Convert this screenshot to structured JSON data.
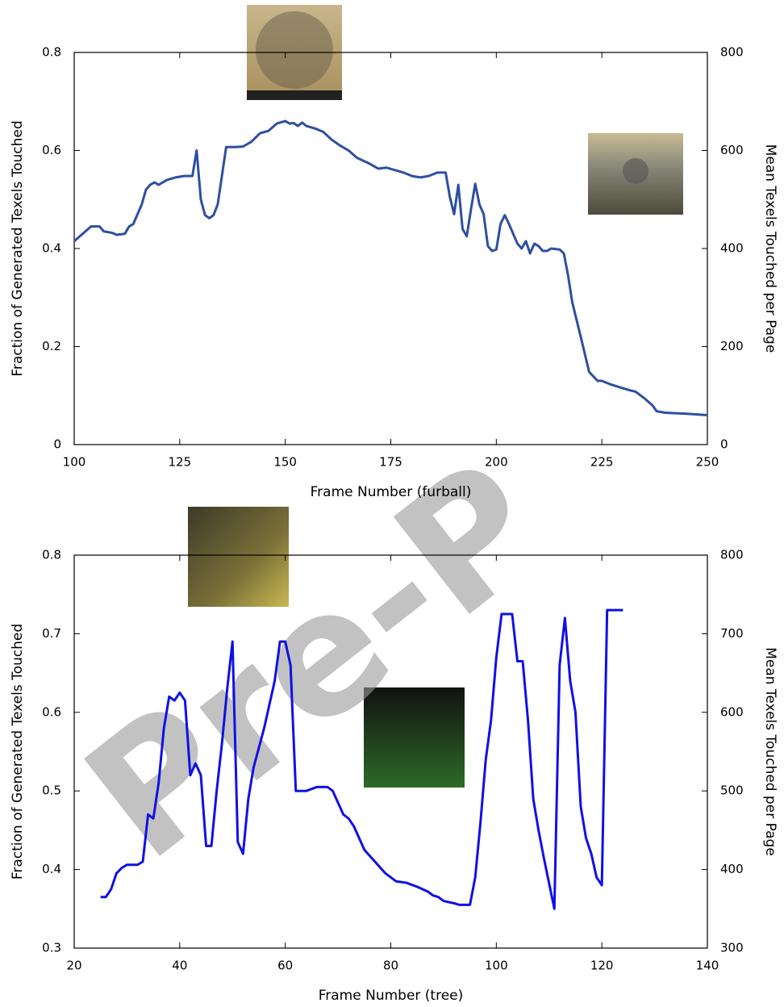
{
  "watermark": "Pre-P",
  "chart_data": [
    {
      "type": "line",
      "xlabel": "Frame Number (furball)",
      "ylabel": "Fraction of Generated Texels Touched",
      "y2label": "Mean Texels Touched per Page",
      "color": "#2e4fa0",
      "x": [
        100,
        102,
        104,
        106,
        107,
        109,
        110,
        112,
        113,
        114,
        116,
        117,
        118,
        119,
        120,
        122,
        124,
        126,
        128,
        129,
        130,
        131,
        132,
        133,
        134,
        136,
        138,
        140,
        142,
        144,
        146,
        148,
        150,
        151,
        152,
        153,
        154,
        155,
        157,
        159,
        161,
        163,
        165,
        167,
        170,
        172,
        174,
        176,
        178,
        180,
        182,
        184,
        186,
        188,
        189,
        190,
        191,
        192,
        193,
        194,
        195,
        196,
        197,
        198,
        199,
        200,
        201,
        202,
        203,
        205,
        206,
        207,
        208,
        209,
        210,
        211,
        212,
        213,
        215,
        216,
        217,
        218,
        220,
        222,
        224,
        225,
        227,
        230,
        232,
        233,
        235,
        237,
        238,
        240,
        245,
        250
      ],
      "values": [
        0.415,
        0.43,
        0.445,
        0.445,
        0.435,
        0.432,
        0.428,
        0.43,
        0.445,
        0.45,
        0.49,
        0.52,
        0.53,
        0.535,
        0.53,
        0.54,
        0.545,
        0.548,
        0.548,
        0.6,
        0.5,
        0.468,
        0.462,
        0.468,
        0.49,
        0.607,
        0.607,
        0.608,
        0.618,
        0.635,
        0.64,
        0.655,
        0.66,
        0.655,
        0.656,
        0.65,
        0.657,
        0.65,
        0.645,
        0.638,
        0.622,
        0.61,
        0.6,
        0.585,
        0.573,
        0.563,
        0.565,
        0.56,
        0.555,
        0.548,
        0.545,
        0.548,
        0.555,
        0.555,
        0.505,
        0.47,
        0.53,
        0.44,
        0.425,
        0.48,
        0.532,
        0.49,
        0.47,
        0.405,
        0.395,
        0.398,
        0.45,
        0.468,
        0.45,
        0.41,
        0.4,
        0.415,
        0.39,
        0.41,
        0.405,
        0.395,
        0.395,
        0.4,
        0.398,
        0.39,
        0.345,
        0.29,
        0.22,
        0.148,
        0.13,
        0.13,
        0.123,
        0.115,
        0.11,
        0.108,
        0.095,
        0.08,
        0.068,
        0.065,
        0.063,
        0.06
      ],
      "xlim": [
        100,
        250
      ],
      "xticks": [
        100,
        125,
        150,
        175,
        200,
        225,
        250
      ],
      "ylim": [
        0,
        0.8
      ],
      "yticks": [
        0,
        0.2,
        0.4,
        0.6,
        0.8
      ],
      "y2lim": [
        0,
        800
      ],
      "y2ticks": [
        0,
        200,
        400,
        600,
        800
      ]
    },
    {
      "type": "line",
      "xlabel": "Frame Number (tree)",
      "ylabel": "Fraction of Generated Texels Touched",
      "y2label": "Mean Texels Touched per Page",
      "color": "#1010e6",
      "x": [
        25,
        26,
        27,
        28,
        29,
        30,
        32,
        33,
        34,
        35,
        36,
        37,
        38,
        39,
        40,
        41,
        42,
        43,
        44,
        45,
        46,
        47,
        48,
        49,
        50,
        51,
        52,
        53,
        54,
        56,
        58,
        59,
        60,
        61,
        62,
        64,
        66,
        68,
        69,
        70,
        71,
        72,
        73,
        75,
        77,
        79,
        81,
        83,
        85,
        87,
        88,
        89,
        90,
        92,
        93,
        95,
        96,
        97,
        98,
        99,
        100,
        101,
        103,
        104,
        105,
        106,
        107,
        108,
        109,
        111,
        112,
        113,
        114,
        115,
        116,
        117,
        118,
        119,
        120,
        121,
        124
      ],
      "values": [
        0.365,
        0.365,
        0.375,
        0.395,
        0.402,
        0.406,
        0.406,
        0.41,
        0.47,
        0.465,
        0.51,
        0.58,
        0.62,
        0.615,
        0.625,
        0.615,
        0.52,
        0.535,
        0.52,
        0.43,
        0.43,
        0.5,
        0.56,
        0.63,
        0.69,
        0.435,
        0.42,
        0.49,
        0.53,
        0.58,
        0.64,
        0.69,
        0.69,
        0.66,
        0.5,
        0.5,
        0.505,
        0.505,
        0.5,
        0.485,
        0.47,
        0.465,
        0.455,
        0.425,
        0.41,
        0.395,
        0.385,
        0.383,
        0.378,
        0.372,
        0.367,
        0.365,
        0.36,
        0.357,
        0.355,
        0.355,
        0.39,
        0.46,
        0.54,
        0.59,
        0.67,
        0.725,
        0.725,
        0.665,
        0.665,
        0.59,
        0.49,
        0.45,
        0.415,
        0.35,
        0.66,
        0.72,
        0.64,
        0.6,
        0.48,
        0.44,
        0.42,
        0.39,
        0.38,
        0.73,
        0.73
      ],
      "xlim": [
        20,
        140
      ],
      "xticks": [
        20,
        40,
        60,
        80,
        100,
        120,
        140
      ],
      "ylim": [
        0.3,
        0.8
      ],
      "yticks": [
        0.3,
        0.4,
        0.5,
        0.6,
        0.7,
        0.8
      ],
      "y2lim": [
        300,
        800
      ],
      "y2ticks": [
        300,
        400,
        500,
        600,
        700,
        800
      ]
    }
  ]
}
